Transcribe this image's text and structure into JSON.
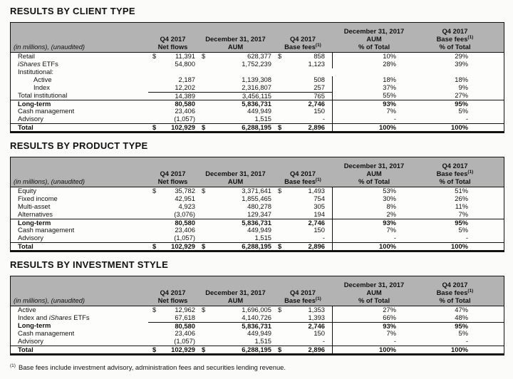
{
  "headers": {
    "in_millions": "(in millions), (unaudited)",
    "net_flows": [
      "Q4 2017",
      "Net flows"
    ],
    "aum": [
      "December 31, 2017",
      "AUM"
    ],
    "base_fees": {
      "0": "Q4 2017",
      "1": "Base fees",
      "sup": "(1)"
    },
    "aum_pct": [
      "December 31, 2017",
      "AUM",
      "% of Total"
    ],
    "base_fees_pct": {
      "0": "Q4 2017",
      "1": "Base fees",
      "sup": "(1)",
      "2": "% of Total"
    }
  },
  "tables": [
    {
      "title": "RESULTS BY CLIENT TYPE",
      "rows": [
        {
          "parts": [
            {
              "text": "Retail"
            }
          ],
          "dollar": "$",
          "net": "11,391",
          "aum": "628,377",
          "fees": "858",
          "aum_pct": "10%",
          "fees_pct": "29%"
        },
        {
          "parts": [
            {
              "text": "iShares",
              "italic": true
            },
            {
              "text": " ETFs"
            }
          ],
          "net": "54,800",
          "aum": "1,752,239",
          "fees": "1,123",
          "aum_pct": "28%",
          "fees_pct": "39%"
        },
        {
          "parts": [
            {
              "text": "Institutional:"
            }
          ],
          "net": "",
          "aum": "",
          "fees": "",
          "aum_pct": "",
          "fees_pct": ""
        },
        {
          "parts": [
            {
              "text": "Active"
            }
          ],
          "indent": true,
          "net": "2,187",
          "aum": "1,139,308",
          "fees": "508",
          "aum_pct": "18%",
          "fees_pct": "18%"
        },
        {
          "parts": [
            {
              "text": "Index"
            }
          ],
          "indent": true,
          "net": "12,202",
          "aum": "2,316,807",
          "fees": "257",
          "aum_pct": "37%",
          "fees_pct": "9%"
        },
        {
          "parts": [
            {
              "text": "Total institutional"
            }
          ],
          "rule": "numeric",
          "net": "14,389",
          "aum": "3,456,115",
          "fees": "765",
          "aum_pct": "55%",
          "fees_pct": "27%"
        },
        {
          "parts": [
            {
              "text": "Long-term"
            }
          ],
          "bold": true,
          "rule": "full",
          "net": "80,580",
          "aum": "5,836,731",
          "fees": "2,746",
          "aum_pct": "93%",
          "fees_pct": "95%"
        },
        {
          "parts": [
            {
              "text": "Cash management"
            }
          ],
          "net": "23,406",
          "aum": "449,949",
          "fees": "150",
          "aum_pct": "7%",
          "fees_pct": "5%"
        },
        {
          "parts": [
            {
              "text": "Advisory"
            }
          ],
          "net": "(1,057)",
          "aum": "1,515",
          "fees": "-",
          "aum_pct": "-",
          "fees_pct": "-"
        },
        {
          "parts": [
            {
              "text": "Total"
            }
          ],
          "bold": true,
          "rule": "full",
          "dollar": "$",
          "net": "102,929",
          "aum": "6,288,195",
          "fees": "2,896",
          "aum_pct": "100%",
          "fees_pct": "100%"
        }
      ]
    },
    {
      "title": "RESULTS BY PRODUCT TYPE",
      "rows": [
        {
          "parts": [
            {
              "text": "Equity"
            }
          ],
          "dollar": "$",
          "net": "35,782",
          "aum": "3,371,641",
          "fees": "1,493",
          "aum_pct": "53%",
          "fees_pct": "51%"
        },
        {
          "parts": [
            {
              "text": "Fixed income"
            }
          ],
          "net": "42,951",
          "aum": "1,855,465",
          "fees": "754",
          "aum_pct": "30%",
          "fees_pct": "26%"
        },
        {
          "parts": [
            {
              "text": "Multi-asset"
            }
          ],
          "net": "4,923",
          "aum": "480,278",
          "fees": "305",
          "aum_pct": "8%",
          "fees_pct": "11%"
        },
        {
          "parts": [
            {
              "text": "Alternatives"
            }
          ],
          "net": "(3,076)",
          "aum": "129,347",
          "fees": "194",
          "aum_pct": "2%",
          "fees_pct": "7%"
        },
        {
          "parts": [
            {
              "text": "Long-term"
            }
          ],
          "bold": true,
          "rule": "full",
          "net": "80,580",
          "aum": "5,836,731",
          "fees": "2,746",
          "aum_pct": "93%",
          "fees_pct": "95%"
        },
        {
          "parts": [
            {
              "text": "Cash management"
            }
          ],
          "net": "23,406",
          "aum": "449,949",
          "fees": "150",
          "aum_pct": "7%",
          "fees_pct": "5%"
        },
        {
          "parts": [
            {
              "text": "Advisory"
            }
          ],
          "net": "(1,057)",
          "aum": "1,515",
          "fees": "-",
          "aum_pct": "-",
          "fees_pct": "-"
        },
        {
          "parts": [
            {
              "text": "Total"
            }
          ],
          "bold": true,
          "rule": "full",
          "dollar": "$",
          "net": "102,929",
          "aum": "6,288,195",
          "fees": "2,896",
          "aum_pct": "100%",
          "fees_pct": "100%"
        }
      ]
    },
    {
      "title": "RESULTS BY INVESTMENT STYLE",
      "rows": [
        {
          "parts": [
            {
              "text": "Active"
            }
          ],
          "dollar": "$",
          "net": "12,962",
          "aum": "1,696,005",
          "fees": "1,353",
          "aum_pct": "27%",
          "fees_pct": "47%"
        },
        {
          "parts": [
            {
              "text": "Index and "
            },
            {
              "text": "iShares",
              "italic": true
            },
            {
              "text": " ETFs"
            }
          ],
          "net": "67,618",
          "aum": "4,140,726",
          "fees": "1,393",
          "aum_pct": "66%",
          "fees_pct": "48%"
        },
        {
          "parts": [
            {
              "text": "Long-term"
            }
          ],
          "bold": true,
          "rule": "data",
          "net": "80,580",
          "aum": "5,836,731",
          "fees": "2,746",
          "aum_pct": "93%",
          "fees_pct": "95%"
        },
        {
          "parts": [
            {
              "text": "Cash management"
            }
          ],
          "net": "23,406",
          "aum": "449,949",
          "fees": "150",
          "aum_pct": "7%",
          "fees_pct": "5%"
        },
        {
          "parts": [
            {
              "text": "Advisory"
            }
          ],
          "net": "(1,057)",
          "aum": "1,515",
          "fees": "-",
          "aum_pct": "-",
          "fees_pct": "-"
        },
        {
          "parts": [
            {
              "text": "Total"
            }
          ],
          "bold": true,
          "rule": "full",
          "dollar": "$",
          "net": "102,929",
          "aum": "6,288,195",
          "fees": "2,896",
          "aum_pct": "100%",
          "fees_pct": "100%"
        }
      ]
    }
  ],
  "footnote": {
    "marker": "(1)",
    "text": "Base fees include investment advisory, administration fees and securities lending revenue."
  }
}
